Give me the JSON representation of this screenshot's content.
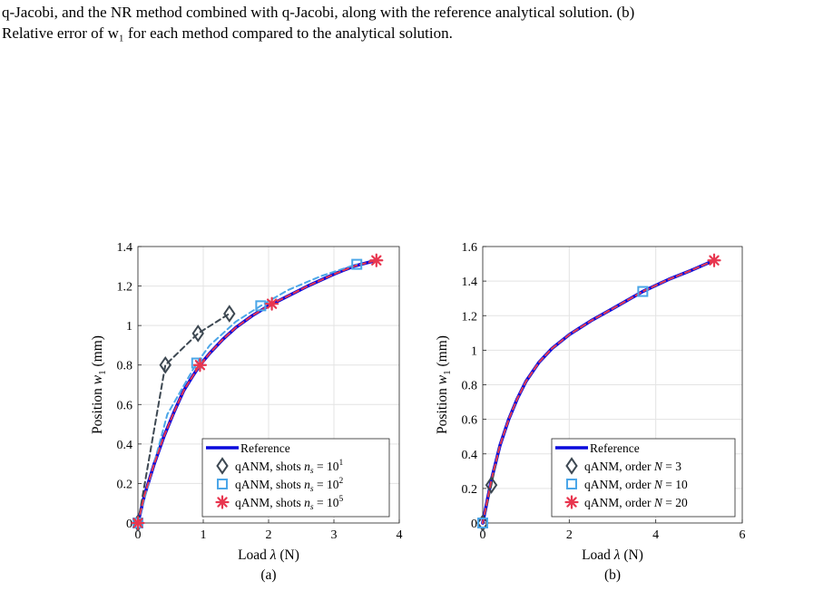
{
  "caption": {
    "line1": "q-Jacobi, and the NR method combined with q-Jacobi, along with the reference analytical solution. (b)",
    "line2": "Relative error of w₁ for each method compared to the analytical solution."
  },
  "colors": {
    "reference": "#0a0adc",
    "gray": "#3d4852",
    "light_blue": "#4ba6e8",
    "red_pink": "#e8364f",
    "grid": "#e3e3e3"
  },
  "chart_data": [
    {
      "type": "line",
      "panel_label": "(a)",
      "xlabel": "Load λ (N)",
      "ylabel": "Position w₁ (mm)",
      "xlim": [
        0,
        4
      ],
      "ylim": [
        0,
        1.4
      ],
      "xticks": [
        0,
        1,
        2,
        3,
        4
      ],
      "yticks": [
        0,
        0.2,
        0.4,
        0.6,
        0.8,
        1,
        1.2,
        1.4
      ],
      "ytick_labels": [
        "0",
        "0.2",
        "0.4",
        "0.6",
        "0.8",
        "1",
        "1.2",
        "1.4"
      ],
      "grid": true,
      "legend_position": "bottom-right",
      "series": [
        {
          "name": "Reference",
          "style": "solid-thick",
          "color": "#0a0adc",
          "x": [
            0,
            0.1,
            0.25,
            0.4,
            0.55,
            0.7,
            0.85,
            0.95,
            1.1,
            1.3,
            1.5,
            1.75,
            2.0,
            2.3,
            2.6,
            3.0,
            3.3,
            3.65
          ],
          "y": [
            0,
            0.14,
            0.3,
            0.44,
            0.56,
            0.67,
            0.75,
            0.8,
            0.86,
            0.93,
            0.99,
            1.05,
            1.1,
            1.15,
            1.2,
            1.26,
            1.3,
            1.33
          ]
        },
        {
          "name": "qANM, shots n_s = 10^1",
          "style": "dashed",
          "color": "#3d4852",
          "marker": "diamond",
          "x": [
            0,
            0.42,
            0.92,
            1.4
          ],
          "y": [
            0,
            0.8,
            0.96,
            1.06
          ],
          "markers_x": [
            0,
            0.42,
            0.92,
            1.4
          ],
          "markers_y": [
            0,
            0.8,
            0.96,
            1.06
          ]
        },
        {
          "name": "qANM, shots n_s = 10^2",
          "style": "dashed",
          "color": "#4ba6e8",
          "marker": "square",
          "x": [
            0,
            0.45,
            0.9,
            1.1,
            1.3,
            1.5,
            1.88,
            2.3,
            2.8,
            3.35
          ],
          "y": [
            0,
            0.55,
            0.81,
            0.9,
            0.96,
            1.02,
            1.1,
            1.18,
            1.25,
            1.31
          ],
          "markers_x": [
            0,
            0.9,
            1.88,
            3.35
          ],
          "markers_y": [
            0,
            0.81,
            1.1,
            1.31
          ]
        },
        {
          "name": "qANM, shots n_s = 10^5",
          "style": "dashed",
          "color": "#e8364f",
          "marker": "asterisk",
          "x": [
            0,
            0.1,
            0.25,
            0.4,
            0.55,
            0.7,
            0.85,
            0.95,
            1.1,
            1.3,
            1.5,
            1.75,
            2.05,
            2.3,
            2.6,
            3.0,
            3.3,
            3.65
          ],
          "y": [
            0,
            0.14,
            0.3,
            0.44,
            0.56,
            0.67,
            0.75,
            0.8,
            0.86,
            0.93,
            0.99,
            1.05,
            1.11,
            1.15,
            1.2,
            1.26,
            1.3,
            1.33
          ],
          "markers_x": [
            0,
            0.95,
            2.05,
            3.65
          ],
          "markers_y": [
            0,
            0.8,
            1.11,
            1.33
          ]
        }
      ],
      "legend": [
        {
          "label": "Reference",
          "kind": "line"
        },
        {
          "label": "qANM, shots n_s = 10^1",
          "kind": "diamond"
        },
        {
          "label": "qANM, shots n_s = 10^2",
          "kind": "square"
        },
        {
          "label": "qANM, shots n_s = 10^5",
          "kind": "asterisk"
        }
      ]
    },
    {
      "type": "line",
      "panel_label": "(b)",
      "xlabel": "Load λ (N)",
      "ylabel": "Position w₁ (mm)",
      "xlim": [
        0,
        6
      ],
      "ylim": [
        0,
        1.6
      ],
      "xticks": [
        0,
        2,
        4,
        6
      ],
      "yticks": [
        0,
        0.2,
        0.4,
        0.6,
        0.8,
        1,
        1.2,
        1.4,
        1.6
      ],
      "ytick_labels": [
        "0",
        "0.2",
        "0.4",
        "0.6",
        "0.8",
        "1",
        "1.2",
        "1.4",
        "1.6"
      ],
      "grid": true,
      "legend_position": "bottom-right",
      "series": [
        {
          "name": "Reference",
          "style": "solid-thick",
          "color": "#0a0adc",
          "x": [
            0,
            0.2,
            0.4,
            0.6,
            0.8,
            1.0,
            1.3,
            1.6,
            2.0,
            2.5,
            3.0,
            3.7,
            4.3,
            4.8,
            5.35
          ],
          "y": [
            0,
            0.25,
            0.45,
            0.6,
            0.72,
            0.82,
            0.93,
            1.01,
            1.09,
            1.17,
            1.24,
            1.34,
            1.41,
            1.46,
            1.52
          ]
        },
        {
          "name": "qANM, order N = 3",
          "style": "dashed",
          "color": "#3d4852",
          "marker": "diamond",
          "x": [
            0,
            0.2,
            0.4
          ],
          "y": [
            0,
            0.22,
            0.46
          ],
          "markers_x": [
            0,
            0.2
          ],
          "markers_y": [
            0,
            0.22
          ]
        },
        {
          "name": "qANM, order N = 10",
          "style": "dashed",
          "color": "#4ba6e8",
          "marker": "square",
          "x": [
            0,
            0.2,
            0.4,
            0.6,
            0.8,
            1.0,
            1.3,
            1.6,
            2.0,
            2.5,
            3.0,
            3.7,
            4.3,
            4.8,
            5.35
          ],
          "y": [
            0,
            0.25,
            0.45,
            0.6,
            0.72,
            0.82,
            0.93,
            1.01,
            1.09,
            1.17,
            1.24,
            1.34,
            1.41,
            1.46,
            1.52
          ],
          "markers_x": [
            0,
            3.7
          ],
          "markers_y": [
            0,
            1.34
          ]
        },
        {
          "name": "qANM, order N = 20",
          "style": "dashed",
          "color": "#e8364f",
          "marker": "asterisk",
          "x": [
            0,
            0.2,
            0.4,
            0.6,
            0.8,
            1.0,
            1.3,
            1.6,
            2.0,
            2.5,
            3.0,
            3.7,
            4.3,
            4.8,
            5.35
          ],
          "y": [
            0,
            0.25,
            0.45,
            0.6,
            0.72,
            0.82,
            0.93,
            1.01,
            1.09,
            1.17,
            1.24,
            1.34,
            1.41,
            1.46,
            1.52
          ],
          "markers_x": [
            5.35
          ],
          "markers_y": [
            1.52
          ]
        }
      ],
      "legend": [
        {
          "label": "Reference",
          "kind": "line"
        },
        {
          "label": "qANM, order N = 3",
          "kind": "diamond"
        },
        {
          "label": "qANM, order N = 10",
          "kind": "square"
        },
        {
          "label": "qANM, order N = 20",
          "kind": "asterisk"
        }
      ]
    }
  ]
}
